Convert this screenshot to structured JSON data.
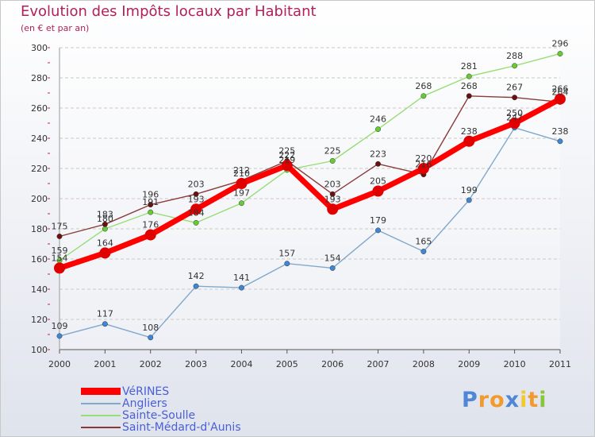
{
  "chart_data": {
    "type": "line",
    "title": "Evolution des Impôts locaux par Habitant",
    "subtitle": "(en € et par an)",
    "xlabel": "",
    "ylabel": "",
    "categories": [
      "2000",
      "2001",
      "2002",
      "2003",
      "2004",
      "2005",
      "2006",
      "2007",
      "2008",
      "2009",
      "2010",
      "2011"
    ],
    "ylim": [
      100,
      300
    ],
    "yticks": [
      "100",
      "120",
      "140",
      "160",
      "180",
      "200",
      "220",
      "240",
      "260",
      "280",
      "300"
    ],
    "grid": "horizontal dashed",
    "legend_position": "bottom-left",
    "series": [
      {
        "name": "VéRINES",
        "color": "#ff0000",
        "point_color": "#e00000",
        "labels": [
          "154",
          "164",
          "176",
          "193",
          "210",
          "222",
          "193",
          "205",
          "220",
          "238",
          "250",
          "266"
        ],
        "values": [
          154,
          164,
          176,
          193,
          210,
          222,
          193,
          205,
          220,
          238,
          250,
          266
        ]
      },
      {
        "name": "Angliers",
        "color": "#82a8cc",
        "point_color": "#3f86d4",
        "labels": [
          "109",
          "117",
          "108",
          "142",
          "141",
          "157",
          "154",
          "179",
          "165",
          "199",
          "247",
          "238"
        ],
        "values": [
          109,
          117,
          108,
          142,
          141,
          157,
          154,
          179,
          165,
          199,
          247,
          238
        ]
      },
      {
        "name": "Sainte-Soulle",
        "color": "#99dd77",
        "point_color": "#66cc33",
        "labels": [
          "159",
          "180",
          "191",
          "184",
          "197",
          "219",
          "225",
          "246",
          "268",
          "281",
          "288",
          "296"
        ],
        "values": [
          159,
          180,
          191,
          184,
          197,
          219,
          225,
          246,
          268,
          281,
          288,
          296
        ]
      },
      {
        "name": "Saint-Médard-d'Aunis",
        "color": "#8b3a3a",
        "point_color": "#6a1010",
        "labels": [
          "175",
          "183",
          "196",
          "203",
          "212",
          "225",
          "203",
          "223",
          "216",
          "268",
          "267",
          "264"
        ],
        "values": [
          175,
          183,
          196,
          203,
          212,
          225,
          203,
          223,
          216,
          268,
          267,
          264
        ]
      }
    ]
  },
  "brand": {
    "letters": [
      "P",
      "r",
      "o",
      "x",
      "i",
      "t",
      "i"
    ],
    "colors": [
      "#4f86d6",
      "#f29a2e",
      "#f29a2e",
      "#4f86d6",
      "#f2c92e",
      "#f29a2e",
      "#8bc43f"
    ]
  }
}
